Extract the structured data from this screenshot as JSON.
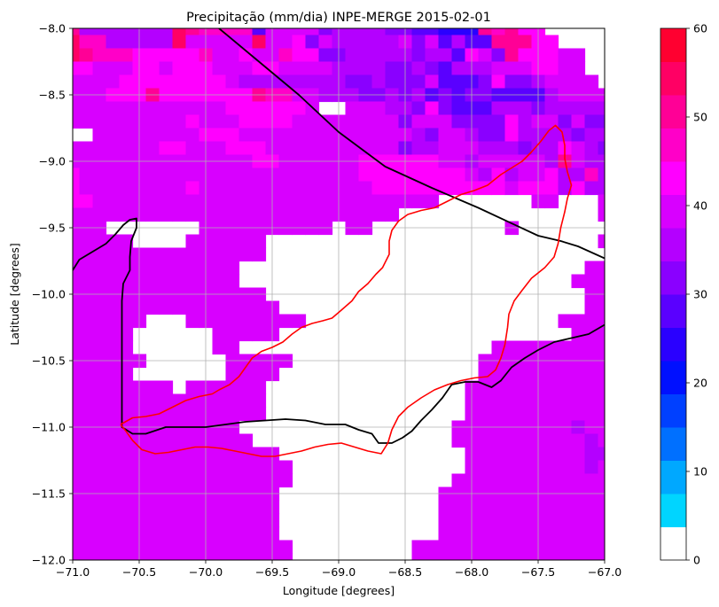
{
  "chart_data": {
    "type": "heatmap",
    "title": "Precipitação (mm/dia) INPE-MERGE 2015-02-01",
    "xlabel": "Longitude [degrees]",
    "ylabel": "Latitude [degrees]",
    "xlim": [
      -71.0,
      -67.0
    ],
    "ylim": [
      -12.0,
      -8.0
    ],
    "grid": true,
    "x_ticks": [
      -71.0,
      -70.5,
      -70.0,
      -69.5,
      -69.0,
      -68.5,
      -68.0,
      -67.5,
      -67.0
    ],
    "x_tick_labels": [
      "−71.0",
      "−70.5",
      "−70.0",
      "−69.5",
      "−69.0",
      "−68.5",
      "−68.0",
      "−67.5",
      "−67.0"
    ],
    "y_ticks": [
      -8.0,
      -8.5,
      -9.0,
      -9.5,
      -10.0,
      -10.5,
      -11.0,
      -11.5,
      -12.0
    ],
    "y_tick_labels": [
      "−8.0",
      "−8.5",
      "−9.0",
      "−9.5",
      "−10.0",
      "−10.5",
      "−11.0",
      "−11.5",
      "−12.0"
    ],
    "grid_resolution_deg": 0.1,
    "colorbar": {
      "min": 0,
      "max": 60,
      "ticks": [
        0,
        10,
        20,
        30,
        40,
        50,
        60
      ],
      "tick_labels": [
        "0",
        "10",
        "20",
        "30",
        "40",
        "50",
        "60"
      ],
      "colors": [
        "#ffffff",
        "#00d5ff",
        "#00a8ff",
        "#0070ff",
        "#0040ff",
        "#0010ff",
        "#2a00ff",
        "#5a00ff",
        "#8a00ff",
        "#b400ff",
        "#d800ff",
        "#ff00ff",
        "#ff00c8",
        "#ff0096",
        "#ff0064",
        "#ff0030"
      ]
    },
    "precip_rows_north_to_south": [
      "D9999999EDCCCC7AAAA899998877666DCDBB00000",
      "ECC99999EAAAAAEAAB8A99999A8A7977DDDBB0000",
      "EDCCCBBBBBCAABAACBB88999998997BA8DBBBAA00",
      "BBAAABBABBBAAABBAAAA999988987999AAABBAA00",
      "AAAABBBBBBBBA99999999889888A7778B889AAAA0",
      "AAABBBDBBBBBBBDCCAA999889897878877779AAAA",
      "AAAAAAAAAAAABBBBBBA00AAA998B8777999899999",
      "AAAAAAAAABAAABBBBAAAAAAAA8AAA8888B9AA8A88",
      "00AAAAAAAABBBAAAAAAAAAAAAA98AA988B9999899",
      "AAAAAAABBAAABBBAAAAAAAAAA899AAA999899BA98",
      "AAAAAAAAAAAAAABBAAAAAABBBBBBAA9AAAAA9DA99",
      "BAAAAAAAAAAAAAAAAAAAAABBBBBBBBA9B9AAB99C9",
      "BAAAAAAAABAAAAAAAAAAAAABBBBBBBBBBABBB9B99",
      "BBAAAAAAAAAAAAAAAAAAAAAAAAAA0000000AA000A",
      "AAAAAAAAAAAAAAAAAAAAAAAAA000000000000000A",
      "AAA0000000AAAAAAAAAA0AA0000000000A0000000",
      "AAAAA0000AAAAAA0000000000000000000000000A",
      "AAAAAAAAAAAAAAA00000000000000000000000000",
      "AAAAAAAAAAAAA00000000000000000000000000AA",
      "AAAAAAAAAAAAA0000000000000000000000000AAA",
      "AAAAAAAAAAAAAAA000000000000000000000000AA",
      "AAAAAAAAAAAAAAAA00000000000000000000000AA",
      "AAAAAA000AAAAAAAAA0000000000000000000AAAA",
      "AAAAA000000AAAAA0000000000000000000000AAA",
      "AAAAA000000AA0000000000000000000AAAAAAAAA",
      "AAAAAA000000AAAAA00000000000000AAAAAAAAAA",
      "AAAAA0000000AAAA000000000000000AAAAAAAAAA",
      "AAAAAAAA0AAAAAA000000000000000AAAAAAAAAAA",
      "AAAAAAAAAAAAAAA000000000000000AAAAAAAAAAA",
      "AAAAAAAAAAAAAAA000000000000000AAAAAAAAAAA",
      "AAAAAAAAAAAAA0000000000000000AAAAAAAAA9AA",
      "AAAAAAAAAAAAAA000000000000000AAAAAAAAAA9A",
      "AAAAAAAAAAAAAAAA00000000000000AAAAAAAAA99",
      "AAAAAAAAAAAAAAAAA0000000000000AAAAAAAAA9A",
      "AAAAAAAAAAAAAAAAA000000000000AAAAAAAAAAAA",
      "AAAAAAAAAAAAAAAA000000000000AAAAAAAAAAAAA",
      "AAAAAAAAAAAAAAAA000000000000AAAAAAAAAAAAA",
      "AAAAAAAAAAAAAAAA000000000000AAAAAAAAAAAAA",
      "AAAAAAAAAAAAAAAA000000000000AAAAAAAAAAAAA",
      "AAAAAAAAAAAAAAAAA000000000AAAAAAAAAAAAAAA",
      "AAAAAAAAAAAAAAAAA000000000AAAAAAAAAAAAAAA"
    ],
    "contours": {
      "red": [
        [
          -70.64,
          -10.98
        ],
        [
          -70.55,
          -10.93
        ],
        [
          -70.45,
          -10.92
        ],
        [
          -70.35,
          -10.9
        ],
        [
          -70.25,
          -10.85
        ],
        [
          -70.15,
          -10.8
        ],
        [
          -70.05,
          -10.77
        ],
        [
          -69.95,
          -10.75
        ],
        [
          -69.9,
          -10.72
        ],
        [
          -69.82,
          -10.68
        ],
        [
          -69.75,
          -10.62
        ],
        [
          -69.7,
          -10.55
        ],
        [
          -69.65,
          -10.48
        ],
        [
          -69.58,
          -10.43
        ],
        [
          -69.5,
          -10.4
        ],
        [
          -69.42,
          -10.36
        ],
        [
          -69.35,
          -10.3
        ],
        [
          -69.28,
          -10.25
        ],
        [
          -69.2,
          -10.22
        ],
        [
          -69.12,
          -10.2
        ],
        [
          -69.05,
          -10.18
        ],
        [
          -68.98,
          -10.12
        ],
        [
          -68.9,
          -10.05
        ],
        [
          -68.85,
          -9.98
        ],
        [
          -68.78,
          -9.92
        ],
        [
          -68.72,
          -9.85
        ],
        [
          -68.67,
          -9.8
        ],
        [
          -68.62,
          -9.7
        ],
        [
          -68.62,
          -9.6
        ],
        [
          -68.6,
          -9.52
        ],
        [
          -68.55,
          -9.45
        ],
        [
          -68.48,
          -9.4
        ],
        [
          -68.38,
          -9.37
        ],
        [
          -68.28,
          -9.35
        ],
        [
          -68.18,
          -9.3
        ],
        [
          -68.08,
          -9.25
        ],
        [
          -67.98,
          -9.22
        ],
        [
          -67.88,
          -9.18
        ],
        [
          -67.78,
          -9.1
        ],
        [
          -67.7,
          -9.05
        ],
        [
          -67.62,
          -9.0
        ],
        [
          -67.55,
          -8.93
        ],
        [
          -67.48,
          -8.85
        ],
        [
          -67.42,
          -8.77
        ],
        [
          -67.37,
          -8.73
        ],
        [
          -67.32,
          -8.78
        ],
        [
          -67.3,
          -8.88
        ],
        [
          -67.3,
          -8.98
        ],
        [
          -67.28,
          -9.08
        ],
        [
          -67.25,
          -9.18
        ],
        [
          -67.28,
          -9.28
        ],
        [
          -67.3,
          -9.38
        ],
        [
          -67.33,
          -9.5
        ],
        [
          -67.35,
          -9.62
        ],
        [
          -67.38,
          -9.72
        ],
        [
          -67.45,
          -9.8
        ],
        [
          -67.55,
          -9.88
        ],
        [
          -67.62,
          -9.97
        ],
        [
          -67.68,
          -10.05
        ],
        [
          -67.72,
          -10.15
        ],
        [
          -67.73,
          -10.25
        ],
        [
          -67.75,
          -10.38
        ],
        [
          -67.78,
          -10.48
        ],
        [
          -67.82,
          -10.57
        ],
        [
          -67.88,
          -10.62
        ],
        [
          -67.98,
          -10.63
        ],
        [
          -68.08,
          -10.65
        ],
        [
          -68.18,
          -10.68
        ],
        [
          -68.28,
          -10.72
        ],
        [
          -68.38,
          -10.78
        ],
        [
          -68.48,
          -10.85
        ],
        [
          -68.55,
          -10.92
        ],
        [
          -68.6,
          -11.02
        ],
        [
          -68.63,
          -11.12
        ],
        [
          -68.68,
          -11.2
        ],
        [
          -68.78,
          -11.18
        ],
        [
          -68.88,
          -11.15
        ],
        [
          -68.98,
          -11.12
        ],
        [
          -69.08,
          -11.13
        ],
        [
          -69.18,
          -11.15
        ],
        [
          -69.28,
          -11.18
        ],
        [
          -69.38,
          -11.2
        ],
        [
          -69.48,
          -11.22
        ],
        [
          -69.58,
          -11.22
        ],
        [
          -69.68,
          -11.2
        ],
        [
          -69.78,
          -11.18
        ],
        [
          -69.88,
          -11.16
        ],
        [
          -69.98,
          -11.15
        ],
        [
          -70.08,
          -11.15
        ],
        [
          -70.18,
          -11.17
        ],
        [
          -70.28,
          -11.19
        ],
        [
          -70.38,
          -11.2
        ],
        [
          -70.48,
          -11.17
        ],
        [
          -70.55,
          -11.1
        ],
        [
          -70.6,
          -11.03
        ],
        [
          -70.64,
          -10.98
        ]
      ],
      "black_west": [
        [
          -71.0,
          -9.82
        ],
        [
          -70.95,
          -9.74
        ],
        [
          -70.85,
          -9.68
        ],
        [
          -70.75,
          -9.62
        ],
        [
          -70.68,
          -9.55
        ],
        [
          -70.62,
          -9.48
        ],
        [
          -70.57,
          -9.44
        ],
        [
          -70.52,
          -9.43
        ],
        [
          -70.52,
          -9.5
        ],
        [
          -70.56,
          -9.6
        ],
        [
          -70.57,
          -9.72
        ],
        [
          -70.57,
          -9.82
        ],
        [
          -70.62,
          -9.92
        ],
        [
          -70.63,
          -10.05
        ],
        [
          -70.63,
          -10.3
        ],
        [
          -70.63,
          -10.6
        ],
        [
          -70.63,
          -10.85
        ],
        [
          -70.63,
          -11.0
        ],
        [
          -70.55,
          -11.05
        ],
        [
          -70.45,
          -11.05
        ],
        [
          -70.3,
          -11.0
        ],
        [
          -70.15,
          -11.0
        ],
        [
          -70.0,
          -11.0
        ],
        [
          -69.85,
          -10.98
        ],
        [
          -69.7,
          -10.96
        ],
        [
          -69.55,
          -10.95
        ],
        [
          -69.4,
          -10.94
        ],
        [
          -69.25,
          -10.95
        ],
        [
          -69.1,
          -10.98
        ],
        [
          -68.95,
          -10.98
        ],
        [
          -68.85,
          -11.02
        ],
        [
          -68.75,
          -11.05
        ],
        [
          -68.7,
          -11.12
        ],
        [
          -68.6,
          -11.12
        ],
        [
          -68.52,
          -11.08
        ],
        [
          -68.45,
          -11.03
        ],
        [
          -68.38,
          -10.95
        ],
        [
          -68.3,
          -10.87
        ],
        [
          -68.22,
          -10.78
        ],
        [
          -68.15,
          -10.68
        ],
        [
          -68.05,
          -10.66
        ],
        [
          -67.95,
          -10.66
        ],
        [
          -67.85,
          -10.7
        ],
        [
          -67.78,
          -10.65
        ],
        [
          -67.7,
          -10.55
        ],
        [
          -67.6,
          -10.48
        ],
        [
          -67.5,
          -10.42
        ],
        [
          -67.38,
          -10.36
        ],
        [
          -67.25,
          -10.33
        ],
        [
          -67.12,
          -10.3
        ],
        [
          -67.0,
          -10.23
        ]
      ],
      "black_border": [
        [
          -69.9,
          -8.0
        ],
        [
          -69.6,
          -8.25
        ],
        [
          -69.3,
          -8.5
        ],
        [
          -69.0,
          -8.78
        ],
        [
          -68.65,
          -9.04
        ],
        [
          -68.3,
          -9.2
        ],
        [
          -67.95,
          -9.35
        ],
        [
          -67.5,
          -9.56
        ],
        [
          -67.33,
          -9.6
        ],
        [
          -67.2,
          -9.64
        ],
        [
          -67.0,
          -9.73
        ]
      ]
    }
  }
}
